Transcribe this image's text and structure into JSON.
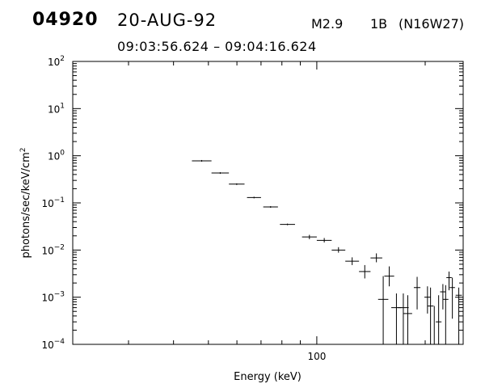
{
  "header": {
    "event_id": "04920",
    "date": "20-AUG-92",
    "flare_class": "M2.9",
    "flare_importance": "1B",
    "flare_location": "(N16W27)",
    "time_range": "09:03:56.624 – 09:04:16.624"
  },
  "chart_data": {
    "type": "scatter",
    "title": "",
    "xlabel": "Energy (keV)",
    "ylabel": "photons/sec/keV/cm²",
    "x_scale": "log",
    "y_scale": "log",
    "xlim": [
      21,
      255
    ],
    "ylim": [
      0.0001,
      100
    ],
    "x_tick_labels": [
      {
        "value": 100,
        "label": "100"
      }
    ],
    "y_tick_labels": [
      {
        "value": 100,
        "base": "10",
        "exp": "2"
      },
      {
        "value": 10,
        "base": "10",
        "exp": "1"
      },
      {
        "value": 1,
        "base": "10",
        "exp": "0"
      },
      {
        "value": 0.1,
        "base": "10",
        "exp": "−1"
      },
      {
        "value": 0.01,
        "base": "10",
        "exp": "−2"
      },
      {
        "value": 0.001,
        "base": "10",
        "exp": "−3"
      },
      {
        "value": 0.0001,
        "base": "10",
        "exp": "−4"
      }
    ],
    "grid": false,
    "series": [
      {
        "points": [
          {
            "x_lo": 45,
            "x_hi": 51,
            "y": 0.78
          },
          {
            "x_lo": 51,
            "x_hi": 57,
            "y": 0.43
          },
          {
            "x_lo": 57,
            "x_hi": 63,
            "y": 0.25
          },
          {
            "x_lo": 64,
            "x_hi": 70,
            "y": 0.13
          },
          {
            "x_lo": 71,
            "x_hi": 78,
            "y": 0.082
          },
          {
            "x_lo": 79,
            "x_hi": 87,
            "y": 0.035
          },
          {
            "x_lo": 91,
            "x_hi": 100,
            "y": 0.019,
            "y_lo": 0.017,
            "y_hi": 0.021
          },
          {
            "x_lo": 100,
            "x_hi": 110,
            "y": 0.016,
            "y_lo": 0.0145,
            "y_hi": 0.018
          },
          {
            "x_lo": 110,
            "x_hi": 120,
            "y": 0.01,
            "y_lo": 0.0088,
            "y_hi": 0.0115
          },
          {
            "x_lo": 120,
            "x_hi": 131,
            "y": 0.0058,
            "y_lo": 0.0048,
            "y_hi": 0.007
          },
          {
            "x_lo": 131,
            "x_hi": 141,
            "y": 0.0035,
            "y_lo": 0.0025,
            "y_hi": 0.0048
          },
          {
            "x_lo": 141,
            "x_hi": 152,
            "y": 0.0068,
            "y_lo": 0.0055,
            "y_hi": 0.0085
          },
          {
            "x_lo": 148,
            "x_hi": 158,
            "y": 0.0009,
            "y_lo": 0.0001,
            "y_hi": 0.0028
          },
          {
            "x_lo": 154,
            "x_hi": 164,
            "y": 0.0028,
            "y_lo": 0.0017,
            "y_hi": 0.0045
          },
          {
            "x_lo": 161,
            "x_hi": 172,
            "y": 0.0006,
            "y_lo": 0.0001,
            "y_hi": 0.0012
          },
          {
            "x_lo": 168,
            "x_hi": 180,
            "y": 0.0006,
            "y_lo": 0.0001,
            "y_hi": 0.0012
          },
          {
            "x_lo": 174,
            "x_hi": 184,
            "y": 0.00045,
            "y_lo": 0.0001,
            "y_hi": 0.0011
          },
          {
            "x_lo": 186,
            "x_hi": 194,
            "y": 0.0016,
            "y_lo": 0.00055,
            "y_hi": 0.0027
          },
          {
            "x_lo": 199,
            "x_hi": 207,
            "y": 0.001,
            "y_lo": 0.00045,
            "y_hi": 0.0017
          },
          {
            "x_lo": 203,
            "x_hi": 211,
            "y": 0.00065,
            "y_lo": 0.0001,
            "y_hi": 0.0016
          },
          {
            "x_lo": 208,
            "x_hi": 216,
            "y": 0.0001,
            "y_lo": 0.0001,
            "y_hi": 0.00065
          },
          {
            "x_lo": 214,
            "x_hi": 222,
            "y": 0.0003,
            "y_lo": 0.0001,
            "y_hi": 0.0011
          },
          {
            "x_lo": 220,
            "x_hi": 228,
            "y": 0.0013,
            "y_lo": 0.00055,
            "y_hi": 0.0019
          },
          {
            "x_lo": 224,
            "x_hi": 232,
            "y": 0.0009,
            "y_lo": 0.0001,
            "y_hi": 0.0018
          },
          {
            "x_lo": 229,
            "x_hi": 237,
            "y": 0.0026,
            "y_lo": 0.0014,
            "y_hi": 0.0035
          },
          {
            "x_lo": 234,
            "x_hi": 242,
            "y": 0.0016,
            "y_lo": 0.00035,
            "y_hi": 0.0026
          },
          {
            "x_lo": 243,
            "x_hi": 253,
            "y": 0.0011,
            "y_lo": 0.0001,
            "y_hi": 0.0016
          }
        ]
      }
    ]
  }
}
